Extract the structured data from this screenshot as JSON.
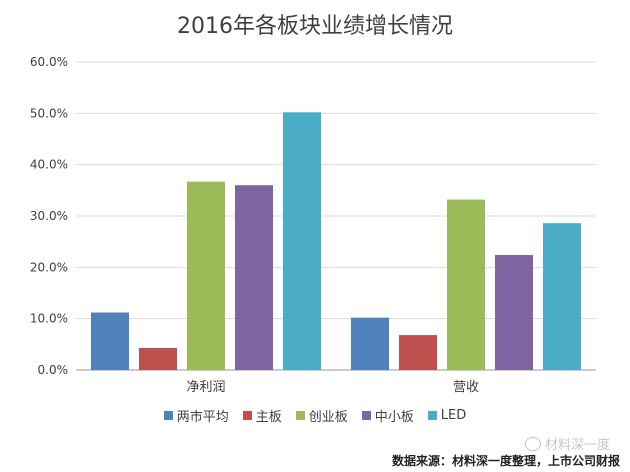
{
  "chart_data": {
    "type": "bar",
    "title": "2016年各板块业绩增长情况",
    "categories": [
      "净利润",
      "营收"
    ],
    "series": [
      {
        "name": "两市平均",
        "color": "#4F81BD",
        "values": [
          11.2,
          10.2
        ]
      },
      {
        "name": "主板",
        "color": "#C0504D",
        "values": [
          4.3,
          6.8
        ]
      },
      {
        "name": "创业板",
        "color": "#9BBB59",
        "values": [
          36.7,
          33.2
        ]
      },
      {
        "name": "中小板",
        "color": "#8064A2",
        "values": [
          36.0,
          22.4
        ]
      },
      {
        "name": "LED",
        "color": "#4BACC6",
        "values": [
          50.2,
          28.6
        ]
      }
    ],
    "ylim": [
      0,
      60
    ],
    "yticks": [
      "0.0%",
      "10.0%",
      "20.0%",
      "30.0%",
      "40.0%",
      "50.0%",
      "60.0%"
    ],
    "grid": true,
    "legend": "bottom"
  },
  "watermark": "材料深一度",
  "source": "数据来源：材料深一度整理，上市公司财报"
}
